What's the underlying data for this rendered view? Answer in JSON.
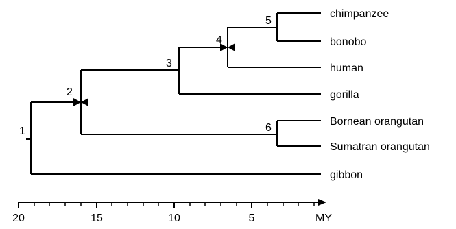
{
  "tree": {
    "leaves": [
      {
        "id": "chimpanzee",
        "label": "chimpanzee"
      },
      {
        "id": "bonobo",
        "label": "bonobo"
      },
      {
        "id": "human",
        "label": "human"
      },
      {
        "id": "gorilla",
        "label": "gorilla"
      },
      {
        "id": "bornean-orangutan",
        "label": "Bornean orangutan"
      },
      {
        "id": "sumatran-orangutan",
        "label": "Sumatran orangutan"
      },
      {
        "id": "gibbon",
        "label": "gibbon"
      }
    ],
    "nodes": [
      {
        "id": "1",
        "label": "1"
      },
      {
        "id": "2",
        "label": "2"
      },
      {
        "id": "3",
        "label": "3"
      },
      {
        "id": "4",
        "label": "4"
      },
      {
        "id": "5",
        "label": "5"
      },
      {
        "id": "6",
        "label": "6"
      }
    ]
  },
  "axis": {
    "unit_label": "MY",
    "ticks": [
      {
        "value": 20,
        "label": "20"
      },
      {
        "value": 15,
        "label": "15"
      },
      {
        "value": 10,
        "label": "10"
      },
      {
        "value": 5,
        "label": "5"
      }
    ]
  }
}
